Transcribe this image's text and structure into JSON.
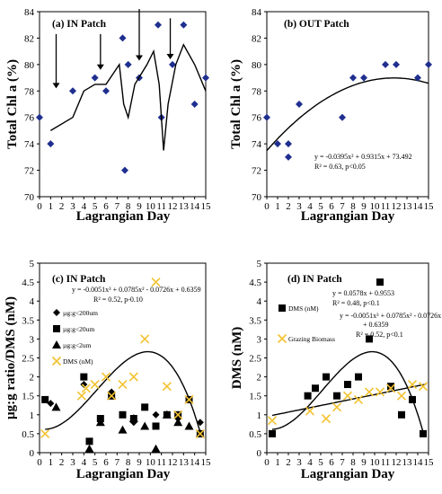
{
  "chart_data": [
    {
      "type": "scatter",
      "title": "(a) IN Patch",
      "xlabel": "Lagrangian Day",
      "ylabel": "Total Chl a (%)",
      "xlim": [
        0,
        15
      ],
      "ylim": [
        70,
        84
      ],
      "xticks": [
        0,
        1,
        2,
        3,
        4,
        5,
        6,
        7,
        8,
        9,
        10,
        11,
        12,
        13,
        14,
        15
      ],
      "yticks": [
        70,
        72,
        74,
        76,
        78,
        80,
        82,
        84
      ],
      "series": [
        {
          "marker": "diamond",
          "color": "#1f2f8f",
          "x": [
            0,
            1,
            3,
            5,
            6,
            7.5,
            7.7,
            8,
            9,
            10.7,
            11,
            12,
            13,
            14,
            15
          ],
          "y": [
            76,
            74,
            78,
            79,
            78,
            82,
            72,
            80,
            79,
            83,
            76,
            80,
            83,
            77,
            79
          ]
        },
        {
          "marker": "line",
          "color": "#000000",
          "x": [
            1,
            3,
            4,
            5,
            6,
            7.2,
            7.6,
            8,
            8.6,
            9.7,
            10.3,
            10.8,
            11.2,
            11.6,
            12.3,
            13,
            14,
            15
          ],
          "y": [
            75,
            76,
            78,
            78.5,
            78.5,
            80,
            77,
            76,
            78.5,
            80,
            81,
            78.5,
            73.5,
            77,
            80,
            81.5,
            80,
            78
          ]
        }
      ],
      "arrows_x": [
        1.5,
        5.5,
        9,
        11.8
      ]
    },
    {
      "type": "scatter",
      "title": "(b) OUT Patch",
      "xlabel": "Lagrangian Day",
      "ylabel": "Total Chl a (%)",
      "xlim": [
        0,
        15
      ],
      "ylim": [
        70,
        84
      ],
      "xticks": [
        0,
        1,
        2,
        3,
        4,
        5,
        6,
        7,
        8,
        9,
        10,
        11,
        12,
        13,
        14,
        15
      ],
      "yticks": [
        70,
        72,
        74,
        76,
        78,
        80,
        82,
        84
      ],
      "series": [
        {
          "marker": "diamond",
          "color": "#1f2f8f",
          "x": [
            0,
            1,
            2,
            2,
            3,
            7,
            8,
            9,
            11,
            12,
            14,
            15
          ],
          "y": [
            76,
            74,
            73,
            74,
            77,
            76,
            79,
            79,
            80,
            80,
            79,
            80
          ]
        }
      ],
      "fit": {
        "a": -0.0395,
        "b": 0.9315,
        "c": 73.492
      },
      "annotations": [
        "y = -0.0395x² + 0.9315x + 73.492",
        "R² = 0.63, p<0.05"
      ]
    },
    {
      "type": "scatter",
      "title": "(c) IN Patch",
      "xlabel": "Lagrangian Day",
      "ylabel": "µg:g ratio/DMS (nM)",
      "xlim": [
        0,
        15
      ],
      "ylim": [
        0,
        5
      ],
      "xticks": [
        0,
        1,
        2,
        3,
        4,
        5,
        6,
        7,
        8,
        9,
        10,
        11,
        12,
        13,
        14,
        15
      ],
      "yticks": [
        0,
        0.5,
        1,
        1.5,
        2,
        2.5,
        3,
        3.5,
        4,
        4.5,
        5
      ],
      "legend": [
        "µg:g<200um",
        "µg:g<20um",
        "µg:g<2um",
        "DMS (nM)"
      ],
      "series": [
        {
          "name": "µg:g<200um",
          "marker": "diamond",
          "color": "#000000",
          "x": [
            1,
            4,
            6.5,
            8.5,
            10.5,
            12.5,
            13.5,
            14.5
          ],
          "y": [
            1.3,
            1.8,
            1.6,
            0.8,
            1,
            0.9,
            1.4,
            0.8
          ]
        },
        {
          "name": "µg:g<20um",
          "marker": "square",
          "color": "#000000",
          "x": [
            0.5,
            4,
            4.5,
            5.5,
            6.5,
            7.5,
            8.5,
            9.5,
            10.5,
            11.5,
            12.5,
            13.5,
            14.5
          ],
          "y": [
            1.4,
            2,
            0.3,
            0.9,
            1.5,
            1,
            0.9,
            1.2,
            0.7,
            1,
            1,
            1.4,
            0.5
          ]
        },
        {
          "name": "µg:g<2um",
          "marker": "triangle",
          "color": "#000000",
          "x": [
            1.5,
            4.5,
            5.5,
            6.5,
            7.5,
            8.5,
            9.5,
            10.5,
            11.5,
            12.5,
            13.5,
            14.5
          ],
          "y": [
            1.2,
            0.1,
            0.8,
            1.5,
            0.6,
            0.9,
            0.7,
            0.1,
            1,
            0.8,
            0.7,
            0.5
          ]
        },
        {
          "name": "DMS (nM)",
          "marker": "x",
          "color": "#f2c230",
          "x": [
            0.5,
            3.8,
            4.2,
            5,
            6,
            6.5,
            7.5,
            8.5,
            9.5,
            10.5,
            11.5,
            12.5,
            13.5,
            14.5
          ],
          "y": [
            0.5,
            1.5,
            1.7,
            1.8,
            2,
            1.5,
            1.8,
            2,
            3,
            4.5,
            1.75,
            1,
            1.4,
            0.5
          ]
        }
      ],
      "fit": {
        "a": -0.0051,
        "b": 0.0785,
        "c": -0.0726,
        "d": 0.6359
      },
      "annotations": [
        "y = -0.0051x³ + 0.0785x² - 0.0726x + 0.6359",
        "R² = 0.52, p-0.10"
      ]
    },
    {
      "type": "scatter",
      "title": "(d) IN Patch",
      "xlabel": "Lagrangian Day",
      "ylabel": "DMS (nM)",
      "xlim": [
        0,
        15
      ],
      "ylim": [
        0,
        5
      ],
      "xticks": [
        0,
        1,
        2,
        3,
        4,
        5,
        6,
        7,
        8,
        9,
        10,
        11,
        12,
        13,
        14,
        15
      ],
      "yticks": [
        0,
        0.5,
        1,
        1.5,
        2,
        2.5,
        3,
        3.5,
        4,
        4.5,
        5
      ],
      "legend": [
        "DMS (nM)",
        "Grazing Biomass"
      ],
      "series": [
        {
          "name": "DMS (nM)",
          "marker": "square",
          "color": "#000000",
          "x": [
            0.5,
            3.8,
            4.5,
            5.5,
            6.5,
            7.5,
            8.5,
            9.5,
            10.5,
            11.5,
            12.5,
            13.5,
            14.5
          ],
          "y": [
            0.5,
            1.5,
            1.7,
            2,
            1.5,
            1.8,
            2,
            3,
            4.5,
            1.75,
            1,
            1.4,
            0.5
          ]
        },
        {
          "name": "Grazing Biomass",
          "marker": "x",
          "color": "#f2c230",
          "x": [
            0.5,
            4,
            5.5,
            6.5,
            7.5,
            8.5,
            9.5,
            10.5,
            11.5,
            12.5,
            13.5,
            14.5
          ],
          "y": [
            0.85,
            1.1,
            0.9,
            1.2,
            1.5,
            1.4,
            1.6,
            1.6,
            1.7,
            1.5,
            1.8,
            1.75
          ]
        }
      ],
      "fit_linear": {
        "m": 0.0578,
        "b": 0.9553
      },
      "fit": {
        "a": -0.0051,
        "b": 0.0785,
        "c": -0.0726,
        "d": 0.6359
      },
      "annotations": [
        "y = 0.0578x + 0.9553",
        "R² = 0.48, p<0.1",
        "y = -0.0051x³ + 0.0785x² - 0.0726x",
        "+ 0.6359",
        "R² = 0.52, p<0.1"
      ]
    }
  ]
}
